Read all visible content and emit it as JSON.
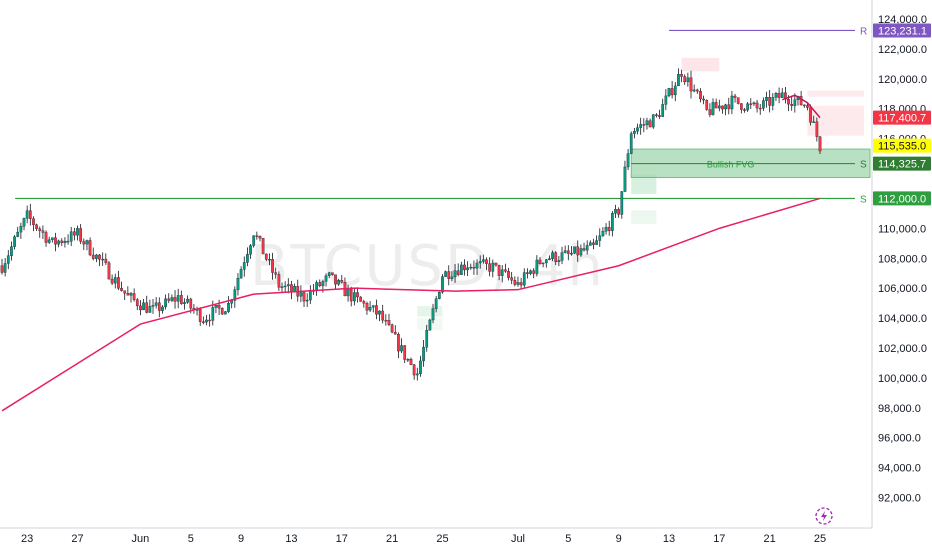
{
  "symbol_watermark": "BTCUSD, 4h",
  "colors": {
    "up": "#089981",
    "down": "#f23645",
    "ma": "#e91e63",
    "support": "#2e9e3f",
    "resistance": "#7e57c2",
    "fvg_fill": "#9fd7ae",
    "fvg_border": "#4caf50",
    "current_price_tag": "#f23645",
    "highlight_tag": "#ffff00"
  },
  "price_axis_labels": [
    "124,000.0",
    "122,000.0",
    "120,000.0",
    "118,000.0",
    "116,000.0",
    "110,000.0",
    "108,000.0",
    "106,000.0",
    "104,000.0",
    "102,000.0",
    "100,000.0",
    "98,000.0",
    "96,000.0",
    "94,000.0",
    "92,000.0"
  ],
  "time_axis_labels": [
    "23",
    "27",
    "Jun",
    "5",
    "9",
    "13",
    "17",
    "21",
    "25",
    "Jul",
    "5",
    "9",
    "13",
    "17",
    "21",
    "25"
  ],
  "price_tags": {
    "resistance": "123,231.1",
    "current": "117,400.7",
    "low": "115,535.0",
    "fvg": "114,325.7",
    "support": "112,000.0"
  },
  "line_labels": {
    "resistance": "R",
    "fvg": "S",
    "support": "S"
  },
  "fvg_label": "Bullish FVG",
  "chart_data": {
    "type": "line",
    "title": "",
    "xlabel": "",
    "ylabel": "",
    "ylim": [
      90500,
      125000
    ],
    "x_ticks": [
      "23",
      "27",
      "Jun",
      "5",
      "9",
      "13",
      "17",
      "21",
      "25",
      "Jul",
      "5",
      "9",
      "13",
      "17",
      "21",
      "25"
    ],
    "series": [
      {
        "x": [
          "May 21",
          "May 23",
          "May 25",
          "May 27",
          "May 29",
          "May 31",
          "Jun 2",
          "Jun 4",
          "Jun 6",
          "Jun 8",
          "Jun 10",
          "Jun 12",
          "Jun 14",
          "Jun 16",
          "Jun 18",
          "Jun 20",
          "Jun 22",
          "Jun 23",
          "Jun 25",
          "Jun 27",
          "Jun 29",
          "Jul 1",
          "Jul 3",
          "Jul 5",
          "Jul 7",
          "Jul 9",
          "Jul 10",
          "Jul 12",
          "Jul 14",
          "Jul 16",
          "Jul 18",
          "Jul 20",
          "Jul 22",
          "Jul 24",
          "Jul 25"
        ],
        "values": [
          107500,
          110800,
          109000,
          109600,
          107600,
          105400,
          104500,
          105400,
          104000,
          104900,
          109800,
          106200,
          105400,
          106700,
          105300,
          104200,
          101500,
          100300,
          106900,
          107600,
          107400,
          106200,
          108000,
          108200,
          108700,
          111200,
          116500,
          117400,
          120500,
          117800,
          118500,
          118000,
          118900,
          118200,
          115500
        ]
      },
      {
        "x": [
          "May 21",
          "Jun 1",
          "Jun 10",
          "Jun 18",
          "Jun 26",
          "Jul 1",
          "Jul 9",
          "Jul 17",
          "Jul 25"
        ],
        "values": [
          97800,
          103600,
          105600,
          106000,
          105800,
          105900,
          107500,
          110000,
          112000
        ]
      }
    ],
    "levels": [
      {
        "value": 123231.1,
        "label": "R"
      },
      {
        "value": 114325.7,
        "label": "S"
      },
      {
        "value": 112000.0,
        "label": "S"
      }
    ],
    "current_price": 117400.7,
    "fvg_zone": {
      "label": "Bullish FVG",
      "from": "Jul 10",
      "to": "Jul 25",
      "low": 113400,
      "high": 115300
    }
  }
}
